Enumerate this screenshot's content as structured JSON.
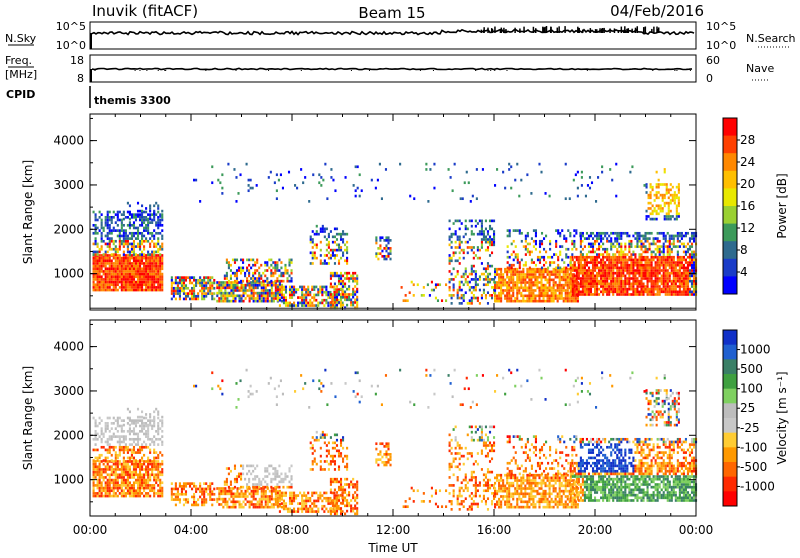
{
  "header": {
    "station": "Inuvik (fitACF)",
    "beam": "Beam 15",
    "date": "04/Feb/2016"
  },
  "sky_panel": {
    "left_label": "N.Sky",
    "left_ticks": [
      "10^5",
      "10^0"
    ],
    "right_label": "N.Search",
    "right_ticks": [
      "10^5",
      "10^0"
    ]
  },
  "freq_panel": {
    "left_label_1": "Freq.",
    "left_label_2": "[MHz]",
    "left_ticks": [
      "18",
      "8"
    ],
    "right_label": "Nave",
    "right_ticks": [
      "60",
      "0"
    ]
  },
  "cpid": {
    "label": "CPID",
    "value": "themis 3300"
  },
  "chart_data": [
    {
      "type": "heatmap",
      "name": "power-panel",
      "ylabel": "Slant Range [km]",
      "yticks": [
        "1000",
        "2000",
        "3000",
        "4000"
      ],
      "ylim": [
        180,
        4600
      ],
      "xlim": [
        0,
        24
      ],
      "xticks": [
        "00:00",
        "04:00",
        "08:00",
        "12:00",
        "16:00",
        "20:00",
        "00:00"
      ],
      "colorbar": {
        "label": "Power [dB]",
        "ticks": [
          "28",
          "24",
          "20",
          "16",
          "12",
          "8",
          "4"
        ],
        "colors": [
          "#ff0000",
          "#ff4000",
          "#ff8800",
          "#ffbf00",
          "#e8e800",
          "#9ad032",
          "#3c9a5a",
          "#2e6a8e",
          "#1a3cc8",
          "#0000ff"
        ]
      },
      "series": [
        {
          "name": "reddish",
          "values": [
            [
              0,
              1000,
              1
            ],
            [
              1,
              1050,
              2
            ],
            [
              3.5,
              900,
              5
            ],
            [
              6.5,
              600,
              5
            ],
            [
              9.5,
              400,
              1
            ]
          ]
        },
        {
          "name": "yellow",
          "values": [
            [
              11.5,
              1000,
              4
            ],
            [
              17,
              800,
              4
            ],
            [
              22.5,
              2700,
              4
            ]
          ]
        }
      ]
    },
    {
      "type": "heatmap",
      "name": "velocity-panel",
      "ylabel": "Slant Range [km]",
      "yticks": [
        "1000",
        "2000",
        "3000",
        "4000"
      ],
      "ylim": [
        180,
        4600
      ],
      "xlim": [
        0,
        24
      ],
      "xticks": [
        "00:00",
        "04:00",
        "08:00",
        "12:00",
        "16:00",
        "20:00",
        "00:00"
      ],
      "xlabel": "Time UT",
      "colorbar": {
        "label": "Velocity [m s⁻¹]",
        "ticks": [
          "1000",
          "500",
          "100",
          "25",
          "-25",
          "-100",
          "-500",
          "-1000"
        ],
        "colors": [
          "#1030c8",
          "#2060d0",
          "#3a7f66",
          "#3fa040",
          "#7fd060",
          "#bdbdbd",
          "#c8c8c8",
          "#ffcc33",
          "#ff9900",
          "#ff6600",
          "#ff2a00",
          "#ff0000"
        ]
      }
    }
  ]
}
